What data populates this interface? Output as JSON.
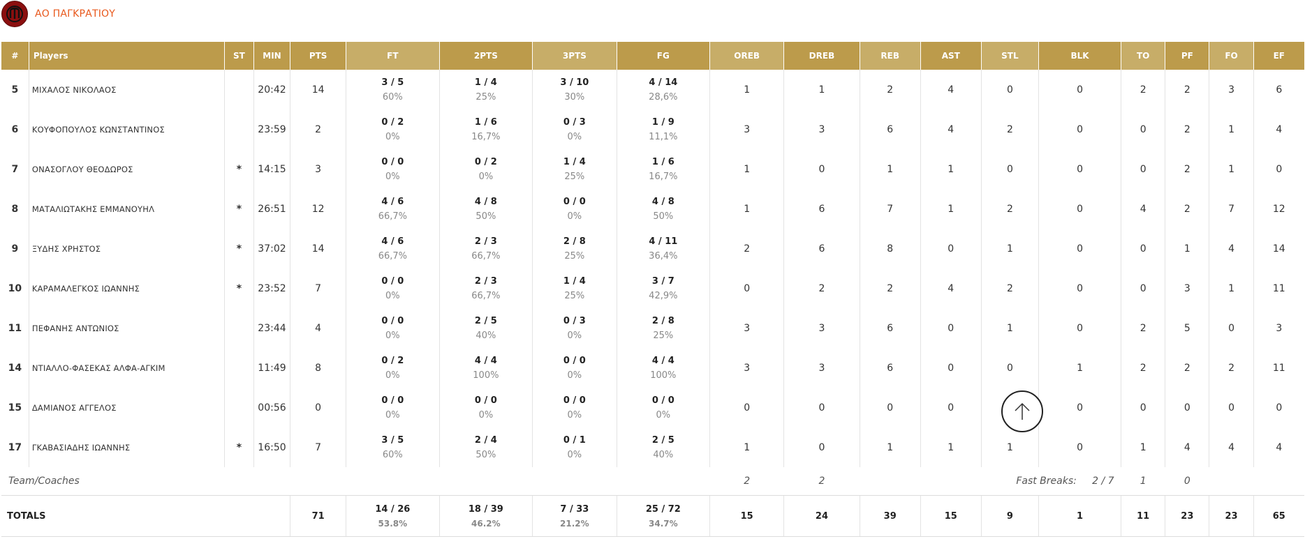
{
  "team": {
    "name": "ΑΟ ΠΑΓΚΡΑΤΙΟΥ",
    "logo_icon": "team-logo-icon",
    "accent": "#e8581c"
  },
  "columns": [
    "#",
    "Players",
    "ST",
    "MIN",
    "PTS",
    "FT",
    "2PTS",
    "3PTS",
    "FG",
    "OREB",
    "DREB",
    "REB",
    "AST",
    "STL",
    "BLK",
    "TO",
    "PF",
    "FO",
    "EF"
  ],
  "header_colors": {
    "dark": "#bc9b4b",
    "light": "#c7ad68"
  },
  "players": [
    {
      "num": "5",
      "name": "ΜΙΧΑΛΟΣ ΝΙΚΟΛΑΟΣ",
      "st": "",
      "min": "20:42",
      "pts": "14",
      "ft": "3 / 5",
      "ft_pct": "60%",
      "p2": "1 / 4",
      "p2_pct": "25%",
      "p3": "3 / 10",
      "p3_pct": "30%",
      "fg": "4 / 14",
      "fg_pct": "28,6%",
      "oreb": "1",
      "dreb": "1",
      "reb": "2",
      "ast": "4",
      "stl": "0",
      "blk": "0",
      "to": "2",
      "pf": "2",
      "fo": "3",
      "ef": "6"
    },
    {
      "num": "6",
      "name": "ΚΟΥΦΟΠΟΥΛΟΣ ΚΩΝΣΤΑΝΤΙΝΟΣ",
      "st": "",
      "min": "23:59",
      "pts": "2",
      "ft": "0 / 2",
      "ft_pct": "0%",
      "p2": "1 / 6",
      "p2_pct": "16,7%",
      "p3": "0 / 3",
      "p3_pct": "0%",
      "fg": "1 / 9",
      "fg_pct": "11,1%",
      "oreb": "3",
      "dreb": "3",
      "reb": "6",
      "ast": "4",
      "stl": "2",
      "blk": "0",
      "to": "0",
      "pf": "2",
      "fo": "1",
      "ef": "4"
    },
    {
      "num": "7",
      "name": "ΟΝΑΣΟΓΛΟΥ ΘΕΟΔΩΡΟΣ",
      "st": "*",
      "min": "14:15",
      "pts": "3",
      "ft": "0 / 0",
      "ft_pct": "0%",
      "p2": "0 / 2",
      "p2_pct": "0%",
      "p3": "1 / 4",
      "p3_pct": "25%",
      "fg": "1 / 6",
      "fg_pct": "16,7%",
      "oreb": "1",
      "dreb": "0",
      "reb": "1",
      "ast": "1",
      "stl": "0",
      "blk": "0",
      "to": "0",
      "pf": "2",
      "fo": "1",
      "ef": "0"
    },
    {
      "num": "8",
      "name": "ΜΑΤΑΛΙΩΤΑΚΗΣ ΕΜΜΑΝΟΥΗΛ",
      "st": "*",
      "min": "26:51",
      "pts": "12",
      "ft": "4 / 6",
      "ft_pct": "66,7%",
      "p2": "4 / 8",
      "p2_pct": "50%",
      "p3": "0 / 0",
      "p3_pct": "0%",
      "fg": "4 / 8",
      "fg_pct": "50%",
      "oreb": "1",
      "dreb": "6",
      "reb": "7",
      "ast": "1",
      "stl": "2",
      "blk": "0",
      "to": "4",
      "pf": "2",
      "fo": "7",
      "ef": "12"
    },
    {
      "num": "9",
      "name": "ΞΥΔΗΣ ΧΡΗΣΤΟΣ",
      "st": "*",
      "min": "37:02",
      "pts": "14",
      "ft": "4 / 6",
      "ft_pct": "66,7%",
      "p2": "2 / 3",
      "p2_pct": "66,7%",
      "p3": "2 / 8",
      "p3_pct": "25%",
      "fg": "4 / 11",
      "fg_pct": "36,4%",
      "oreb": "2",
      "dreb": "6",
      "reb": "8",
      "ast": "0",
      "stl": "1",
      "blk": "0",
      "to": "0",
      "pf": "1",
      "fo": "4",
      "ef": "14"
    },
    {
      "num": "10",
      "name": "ΚΑΡΑΜΑΛΕΓΚΟΣ ΙΩΑΝΝΗΣ",
      "st": "*",
      "min": "23:52",
      "pts": "7",
      "ft": "0 / 0",
      "ft_pct": "0%",
      "p2": "2 / 3",
      "p2_pct": "66,7%",
      "p3": "1 / 4",
      "p3_pct": "25%",
      "fg": "3 / 7",
      "fg_pct": "42,9%",
      "oreb": "0",
      "dreb": "2",
      "reb": "2",
      "ast": "4",
      "stl": "2",
      "blk": "0",
      "to": "0",
      "pf": "3",
      "fo": "1",
      "ef": "11"
    },
    {
      "num": "11",
      "name": "ΠΕΦΑΝΗΣ ΑΝΤΩΝΙΟΣ",
      "st": "",
      "min": "23:44",
      "pts": "4",
      "ft": "0 / 0",
      "ft_pct": "0%",
      "p2": "2 / 5",
      "p2_pct": "40%",
      "p3": "0 / 3",
      "p3_pct": "0%",
      "fg": "2 / 8",
      "fg_pct": "25%",
      "oreb": "3",
      "dreb": "3",
      "reb": "6",
      "ast": "0",
      "stl": "1",
      "blk": "0",
      "to": "2",
      "pf": "5",
      "fo": "0",
      "ef": "3"
    },
    {
      "num": "14",
      "name": "ΝΤΙΑΛΛΟ-ΦΑΣΕΚΑΣ ΑΛΦΑ-ΑΓΚΙΜ",
      "st": "",
      "min": "11:49",
      "pts": "8",
      "ft": "0 / 2",
      "ft_pct": "0%",
      "p2": "4 / 4",
      "p2_pct": "100%",
      "p3": "0 / 0",
      "p3_pct": "0%",
      "fg": "4 / 4",
      "fg_pct": "100%",
      "oreb": "3",
      "dreb": "3",
      "reb": "6",
      "ast": "0",
      "stl": "0",
      "blk": "1",
      "to": "2",
      "pf": "2",
      "fo": "2",
      "ef": "11"
    },
    {
      "num": "15",
      "name": "ΔΑΜΙΑΝΟΣ ΑΓΓΕΛΟΣ",
      "st": "",
      "min": "00:56",
      "pts": "0",
      "ft": "0 / 0",
      "ft_pct": "0%",
      "p2": "0 / 0",
      "p2_pct": "0%",
      "p3": "0 / 0",
      "p3_pct": "0%",
      "fg": "0 / 0",
      "fg_pct": "0%",
      "oreb": "0",
      "dreb": "0",
      "reb": "0",
      "ast": "0",
      "stl": "0",
      "blk": "0",
      "to": "0",
      "pf": "0",
      "fo": "0",
      "ef": "0"
    },
    {
      "num": "17",
      "name": "ΓΚΑΒΑΣΙΑΔΗΣ ΙΩΑΝΝΗΣ",
      "st": "*",
      "min": "16:50",
      "pts": "7",
      "ft": "3 / 5",
      "ft_pct": "60%",
      "p2": "2 / 4",
      "p2_pct": "50%",
      "p3": "0 / 1",
      "p3_pct": "0%",
      "fg": "2 / 5",
      "fg_pct": "40%",
      "oreb": "1",
      "dreb": "0",
      "reb": "1",
      "ast": "1",
      "stl": "1",
      "blk": "0",
      "to": "1",
      "pf": "4",
      "fo": "4",
      "ef": "4"
    }
  ],
  "team_row": {
    "label": "Team/Coaches",
    "oreb": "2",
    "dreb": "2",
    "fast_breaks_label": "Fast Breaks:",
    "fast_breaks_value": "2 / 7",
    "to": "1",
    "pf": "0"
  },
  "totals": {
    "label": "TOTALS",
    "pts": "71",
    "ft": "14 / 26",
    "ft_pct": "53.8%",
    "p2": "18 / 39",
    "p2_pct": "46.2%",
    "p3": "7 / 33",
    "p3_pct": "21.2%",
    "fg": "25 / 72",
    "fg_pct": "34.7%",
    "oreb": "15",
    "dreb": "24",
    "reb": "39",
    "ast": "15",
    "stl": "9",
    "blk": "1",
    "to": "11",
    "pf": "23",
    "fo": "23",
    "ef": "65"
  },
  "scroll_top_icon": "arrow-up-icon"
}
